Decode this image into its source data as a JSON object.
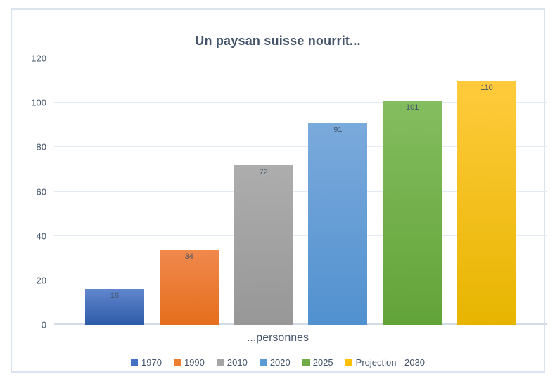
{
  "chart_data": {
    "type": "bar",
    "title": "Un paysan suisse nourrit...",
    "categories": [
      "1970",
      "1990",
      "2010",
      "2020",
      "2025",
      "Projection - 2030"
    ],
    "values": [
      16,
      34,
      72,
      91,
      101,
      110
    ],
    "xlabel": "...personnes",
    "ylabel": "",
    "ylim": [
      0,
      120
    ],
    "ytick_step": 20,
    "yticks": [
      0,
      20,
      40,
      60,
      80,
      100,
      120
    ],
    "grid": true,
    "legend_position": "bottom",
    "series_colors": [
      {
        "base": "#4472C4",
        "top": "#6186CD",
        "bottom": "#2E5BA8"
      },
      {
        "base": "#ED7D31",
        "top": "#F0894D",
        "bottom": "#E56E1C"
      },
      {
        "base": "#A5A5A5",
        "top": "#ADADAD",
        "bottom": "#979797"
      },
      {
        "base": "#5B9BD5",
        "top": "#7BAADC",
        "bottom": "#5191CF"
      },
      {
        "base": "#70AD47",
        "top": "#84BD5F",
        "bottom": "#62A338"
      },
      {
        "base": "#FFC000",
        "top": "#FFCB3D",
        "bottom": "#E7B500"
      }
    ],
    "colors": {
      "title_text": "#44546A",
      "axis_text": "#44546A",
      "data_label_text": "#44546A",
      "gridline": "#E4EAF4",
      "axis_line": "#D3DBE7",
      "frame_border": "#DBE3EF",
      "background": "#FFFFFF"
    }
  }
}
